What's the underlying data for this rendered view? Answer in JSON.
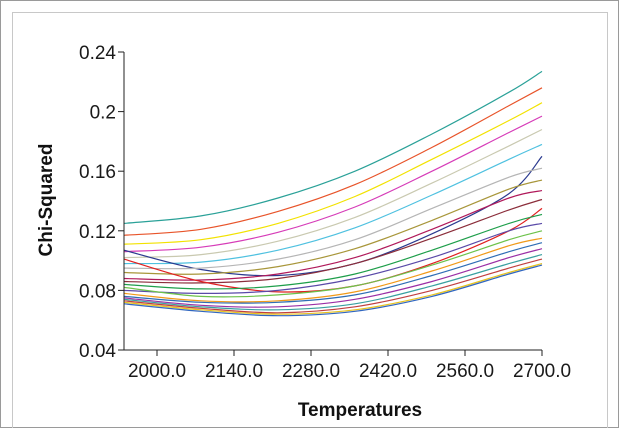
{
  "chart_data": {
    "type": "line",
    "title": "",
    "xlabel": "Temperatures",
    "ylabel": "Chi-Squared",
    "xlim": [
      1940,
      2700
    ],
    "ylim": [
      0.04,
      0.24
    ],
    "x_ticks": [
      "2000.0",
      "2140.0",
      "2280.0",
      "2420.0",
      "2560.0",
      "2700.0"
    ],
    "x_tick_values": [
      2000,
      2140,
      2280,
      2420,
      2560,
      2700
    ],
    "y_ticks": [
      "0.04",
      "0.08",
      "0.12",
      "0.16",
      "0.2",
      "0.24"
    ],
    "y_tick_values": [
      0.04,
      0.08,
      0.12,
      0.16,
      0.2,
      0.24
    ],
    "grid": false,
    "legend": "none",
    "x": [
      1940,
      2080,
      2220,
      2360,
      2500,
      2640,
      2700
    ],
    "series": [
      {
        "color": "#2aa198",
        "values": [
          0.125,
          0.13,
          0.142,
          0.16,
          0.185,
          0.213,
          0.227
        ]
      },
      {
        "color": "#e8542a",
        "values": [
          0.117,
          0.121,
          0.133,
          0.151,
          0.176,
          0.204,
          0.216
        ]
      },
      {
        "color": "#f2e200",
        "values": [
          0.111,
          0.114,
          0.125,
          0.143,
          0.168,
          0.194,
          0.206
        ]
      },
      {
        "color": "#d63cb8",
        "values": [
          0.106,
          0.109,
          0.119,
          0.136,
          0.16,
          0.186,
          0.197
        ]
      },
      {
        "color": "#c9c9b0",
        "values": [
          0.102,
          0.104,
          0.113,
          0.129,
          0.152,
          0.177,
          0.188
        ]
      },
      {
        "color": "#4fc1e0",
        "values": [
          0.098,
          0.099,
          0.107,
          0.122,
          0.144,
          0.168,
          0.178
        ]
      },
      {
        "color": "#2b3a8f",
        "values": [
          0.107,
          0.094,
          0.09,
          0.098,
          0.118,
          0.145,
          0.17
        ]
      },
      {
        "color": "#b5b5b5",
        "values": [
          0.095,
          0.095,
          0.101,
          0.114,
          0.135,
          0.156,
          0.162
        ]
      },
      {
        "color": "#a8963a",
        "values": [
          0.092,
          0.091,
          0.096,
          0.108,
          0.127,
          0.148,
          0.154
        ]
      },
      {
        "color": "#b0195a",
        "values": [
          0.088,
          0.087,
          0.091,
          0.102,
          0.121,
          0.142,
          0.147
        ]
      },
      {
        "color": "#8b2d3a",
        "values": [
          0.086,
          0.085,
          0.088,
          0.098,
          0.115,
          0.134,
          0.141
        ]
      },
      {
        "color": "#e02020",
        "values": [
          0.101,
          0.086,
          0.079,
          0.083,
          0.098,
          0.12,
          0.135
        ]
      },
      {
        "color": "#1e9e4a",
        "values": [
          0.084,
          0.081,
          0.083,
          0.091,
          0.107,
          0.125,
          0.131
        ]
      },
      {
        "color": "#5a4aa8",
        "values": [
          0.08,
          0.078,
          0.08,
          0.088,
          0.102,
          0.12,
          0.125
        ]
      },
      {
        "color": "#6cc24a",
        "values": [
          0.082,
          0.076,
          0.077,
          0.083,
          0.097,
          0.114,
          0.12
        ]
      },
      {
        "color": "#f09a1a",
        "values": [
          0.078,
          0.073,
          0.073,
          0.079,
          0.093,
          0.11,
          0.115
        ]
      },
      {
        "color": "#2f6db5",
        "values": [
          0.076,
          0.072,
          0.072,
          0.077,
          0.09,
          0.106,
          0.112
        ]
      },
      {
        "color": "#9b2fa5",
        "values": [
          0.075,
          0.07,
          0.069,
          0.074,
          0.086,
          0.102,
          0.108
        ]
      },
      {
        "color": "#3aa0a0",
        "values": [
          0.074,
          0.069,
          0.067,
          0.071,
          0.083,
          0.098,
          0.104
        ]
      },
      {
        "color": "#c04040",
        "values": [
          0.073,
          0.068,
          0.065,
          0.069,
          0.08,
          0.095,
          0.101
        ]
      },
      {
        "color": "#e7c21f",
        "values": [
          0.072,
          0.067,
          0.064,
          0.067,
          0.077,
          0.092,
          0.098
        ]
      },
      {
        "color": "#3066c0",
        "values": [
          0.071,
          0.066,
          0.063,
          0.066,
          0.076,
          0.091,
          0.097
        ]
      }
    ]
  }
}
